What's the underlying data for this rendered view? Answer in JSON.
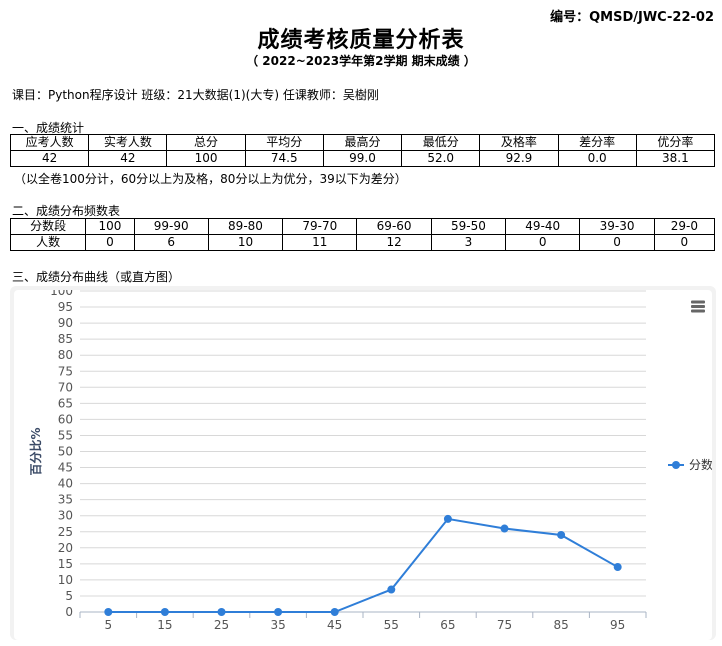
{
  "doc_code": "编号：QMSD/JWC-22-02",
  "title": "成绩考核质量分析表",
  "subtitle": "（ 2022~2023学年第2学期  期末成绩 ）",
  "course_line": "课目：Python程序设计 班级：21大数据(1)(大专) 任课教师：吴樹刚",
  "section1": {
    "heading": "一、成绩统计",
    "headers": [
      "应考人数",
      "实考人数",
      "总分",
      "平均分",
      "最高分",
      "最低分",
      "及格率",
      "差分率",
      "优分率"
    ],
    "values": [
      "42",
      "42",
      "100",
      "74.5",
      "99.0",
      "52.0",
      "92.9",
      "0.0",
      "38.1"
    ]
  },
  "note": "（以全卷100分计，60分以上为及格，80分以上为优分，39以下为差分）",
  "section2": {
    "heading": "二、成绩分布频数表",
    "header_label": "分数段",
    "count_label": "人数",
    "ranges": [
      "100",
      "99-90",
      "89-80",
      "79-70",
      "69-60",
      "59-50",
      "49-40",
      "39-30",
      "29-0"
    ],
    "counts": [
      "0",
      "6",
      "10",
      "11",
      "12",
      "3",
      "0",
      "0",
      "0"
    ]
  },
  "section3": {
    "heading": "三、成绩分布曲线（或直方图）"
  },
  "chart_data": {
    "type": "line",
    "ylabel": "百分比%",
    "xlabel": "",
    "ylim": [
      0,
      100
    ],
    "y_ticks": [
      0,
      5,
      10,
      15,
      20,
      25,
      30,
      35,
      40,
      45,
      50,
      55,
      60,
      65,
      70,
      75,
      80,
      85,
      90,
      95,
      100
    ],
    "x": [
      5,
      15,
      25,
      35,
      45,
      55,
      65,
      75,
      85,
      95
    ],
    "series": [
      {
        "name": "分数",
        "values": [
          0,
          0,
          0,
          0,
          0,
          7,
          29,
          26,
          24,
          14
        ],
        "color": "#2f7ed8"
      }
    ],
    "legend_position": "right",
    "grid": true,
    "menu_icon": "hamburger-menu-icon"
  }
}
